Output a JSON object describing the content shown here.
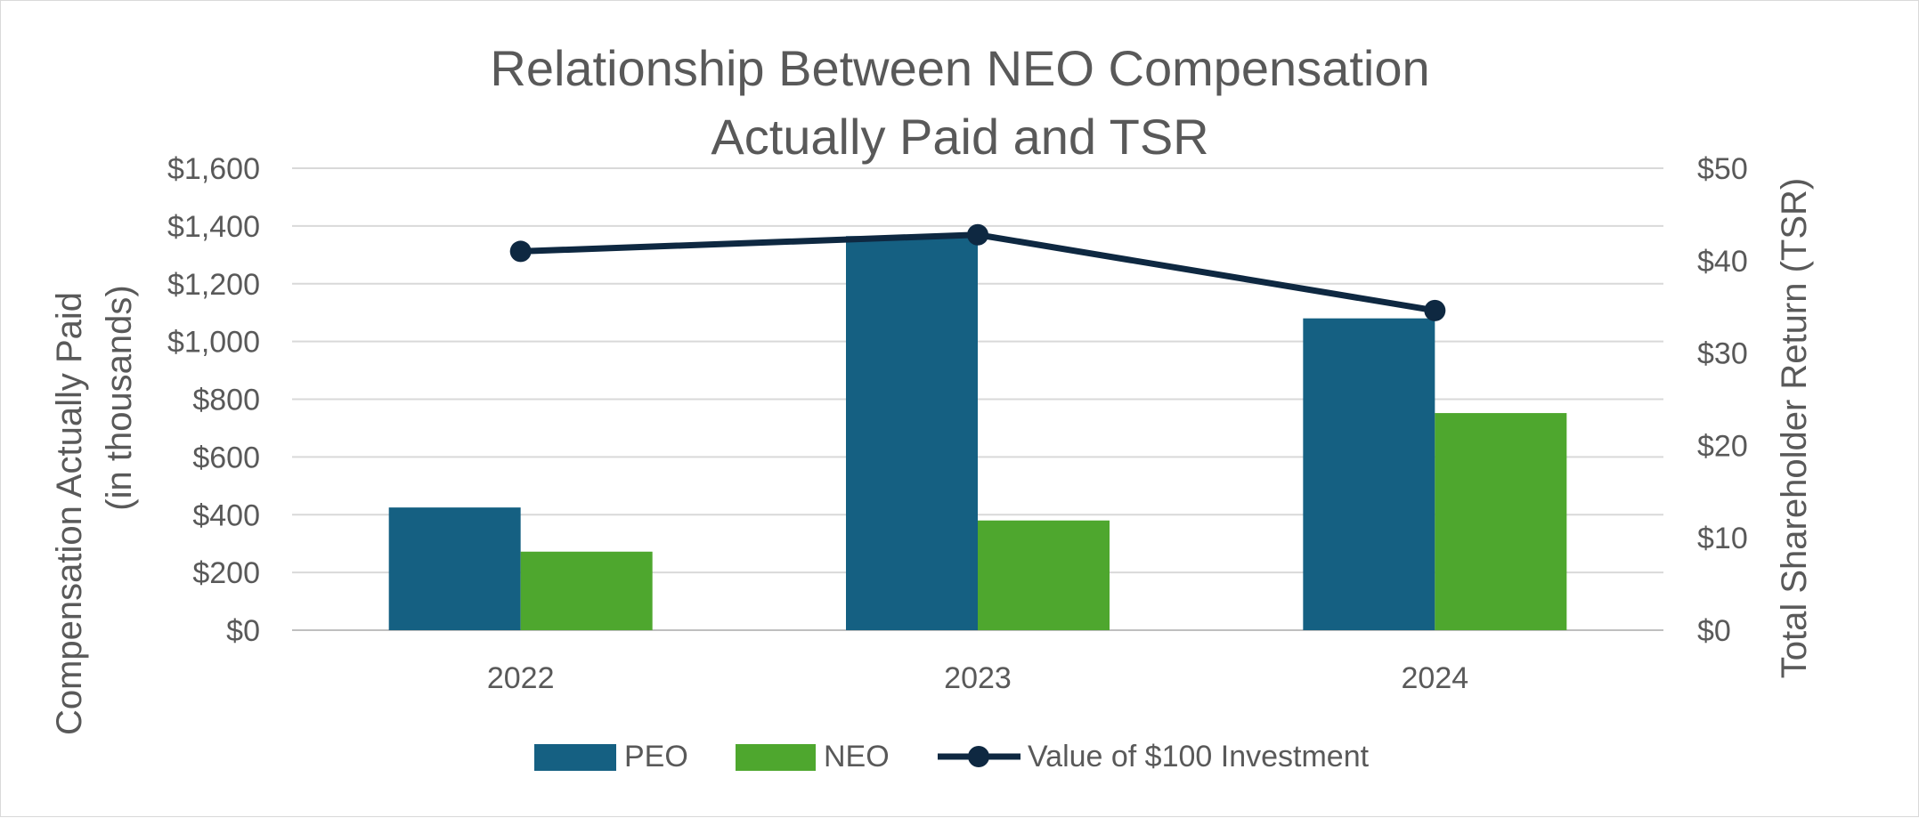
{
  "chart_data": {
    "type": "bar",
    "title_lines": [
      "Relationship Between NEO Compensation",
      "Actually Paid and TSR"
    ],
    "categories": [
      "2022",
      "2023",
      "2024"
    ],
    "y_left": {
      "label_lines": [
        "Compensation Actually Paid",
        "(in thousands)"
      ],
      "range": [
        0,
        1600
      ],
      "ticks": [
        0,
        200,
        400,
        600,
        800,
        1000,
        1200,
        1400,
        1600
      ],
      "tick_labels": [
        "$0",
        "$200",
        "$400",
        "$600",
        "$800",
        "$1,000",
        "$1,200",
        "$1,400",
        "$1,600"
      ]
    },
    "y_right": {
      "label": "Total Shareholder Return (TSR)",
      "range": [
        0,
        50
      ],
      "ticks": [
        0,
        10,
        20,
        30,
        40,
        50
      ],
      "tick_labels": [
        "$0",
        "$10",
        "$20",
        "$30",
        "$40",
        "$50"
      ]
    },
    "series": [
      {
        "name": "PEO",
        "kind": "bar",
        "axis": "left",
        "color": "#156082",
        "values": [
          425,
          1365,
          1080
        ]
      },
      {
        "name": "NEO",
        "kind": "bar",
        "axis": "left",
        "color": "#4ea72e",
        "values": [
          272,
          380,
          752
        ]
      },
      {
        "name": "Value of $100 Investment",
        "kind": "line",
        "axis": "right",
        "color": "#0e2841",
        "values": [
          41.0,
          42.8,
          34.6
        ]
      }
    ],
    "gridlines": true,
    "legend_position": "bottom"
  }
}
